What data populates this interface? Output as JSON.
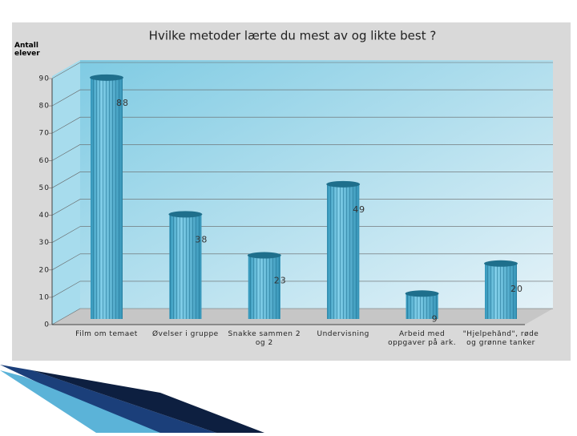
{
  "chart_data": {
    "type": "bar3d",
    "title": "Hvilke metoder lærte du mest av og likte best ?",
    "y_label": "Antall elever",
    "categories": [
      "Film om temaet",
      "Øvelser i gruppe",
      "Snakke sammen 2 og 2",
      "Undervisning",
      "Arbeid med oppgaver på ark.",
      "\"Hjelpehånd\", røde og grønne tanker"
    ],
    "values": [
      88,
      38,
      23,
      49,
      9,
      20
    ],
    "color": "#4fb3d6",
    "ylim": [
      0,
      90
    ],
    "yticks": [
      0,
      10,
      20,
      30,
      40,
      50,
      60,
      70,
      80,
      90
    ],
    "grid": true
  }
}
